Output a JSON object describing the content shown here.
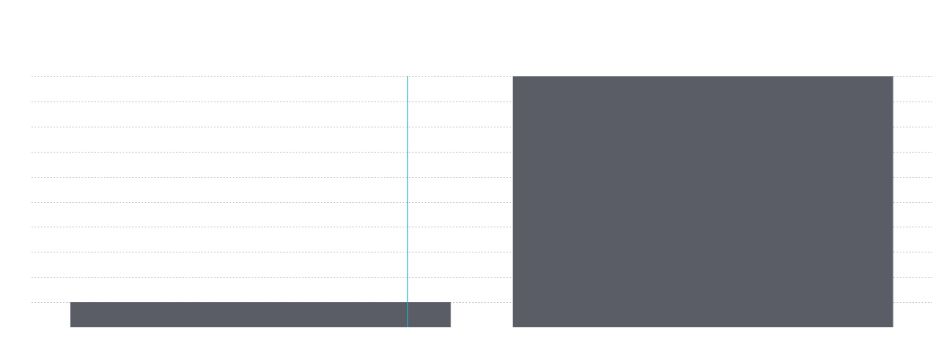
{
  "chart_data": {
    "type": "bar",
    "categories": [
      null,
      null
    ],
    "values": [
      1,
      10
    ],
    "color": "#5a5d66",
    "ylim": [
      0,
      10
    ],
    "yticks": [
      1,
      2,
      3,
      4,
      5,
      6,
      7,
      8,
      9,
      10
    ],
    "grid": true
  }
}
